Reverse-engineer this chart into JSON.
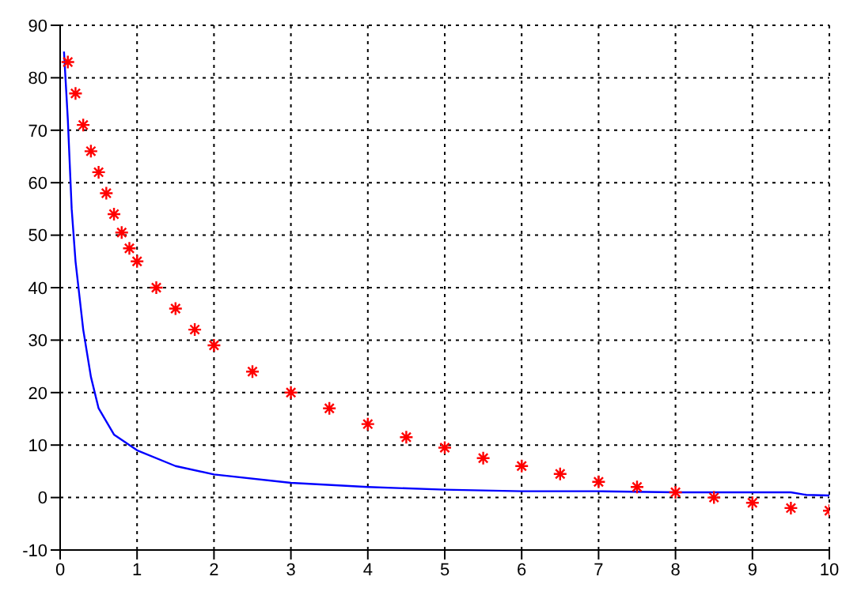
{
  "chart_data": {
    "type": "line",
    "xlim": [
      0,
      10
    ],
    "xticks": [
      0,
      1,
      2,
      3,
      4,
      5,
      6,
      7,
      8,
      9,
      10
    ],
    "ylim": [
      -10,
      90
    ],
    "yticks": [
      -10,
      0,
      10,
      20,
      30,
      40,
      50,
      60,
      70,
      80,
      90
    ],
    "grid": true,
    "series": [
      {
        "color": "#0000ff",
        "marker": "none",
        "line_style": "solid",
        "x": [
          0.05,
          0.1,
          0.15,
          0.2,
          0.3,
          0.4,
          0.5,
          0.7,
          1,
          1.5,
          2,
          3,
          4,
          5,
          6,
          7,
          8,
          9,
          9.5,
          9.7,
          10
        ],
        "values": [
          85,
          72,
          55,
          45,
          32,
          23,
          17,
          12,
          9,
          6,
          4.4,
          2.8,
          2,
          1.5,
          1.2,
          1.2,
          1,
          1,
          1,
          0.5,
          0.4
        ]
      },
      {
        "type": "scatter",
        "color": "#ff0000",
        "marker": "cross",
        "x": [
          0.1,
          0.2,
          0.3,
          0.4,
          0.5,
          0.6,
          0.7,
          0.8,
          0.9,
          1,
          1.25,
          1.5,
          1.75,
          2,
          2.5,
          3,
          3.5,
          4,
          4.5,
          5,
          5.5,
          6,
          6.5,
          7,
          7.5,
          8,
          8.5,
          9,
          9.5,
          10
        ],
        "values": [
          83,
          77,
          71,
          66,
          62,
          58,
          54,
          50.5,
          47.5,
          45,
          40,
          36,
          32,
          29,
          24,
          20,
          17,
          14,
          11.5,
          9.5,
          7.5,
          6,
          4.5,
          3,
          2,
          1,
          0,
          -1,
          -2,
          -2.5
        ]
      }
    ]
  }
}
